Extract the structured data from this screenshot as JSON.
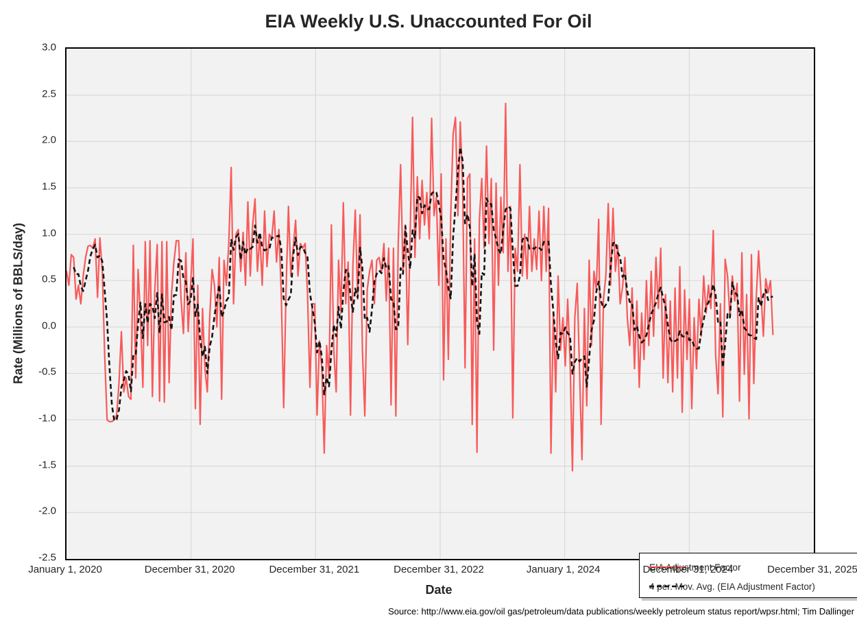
{
  "title": "EIA Weekly U.S. Unaccounted For Oil",
  "y_axis": {
    "label": "Rate (Millions of BBLS/day)",
    "ticks": [
      "3.0",
      "2.5",
      "2.0",
      "1.5",
      "1.0",
      "0.5",
      "0.0",
      "-0.5",
      "-1.0",
      "-1.5",
      "-2.0",
      "-2.5"
    ]
  },
  "x_axis": {
    "label": "Date",
    "ticks": [
      "January 1, 2020",
      "December 31, 2020",
      "December 31, 2021",
      "December 31, 2022",
      "January 1, 2024",
      "December 31, 2024",
      "December 31, 2025"
    ]
  },
  "legend": {
    "items": [
      {
        "label": "EIA Adjustment Factor",
        "style": "solid",
        "color": "#f85a5a"
      },
      {
        "label": "4 per. Mov. Avg. (EIA Adjustment Factor)",
        "style": "dashed",
        "color": "#141414"
      }
    ]
  },
  "source_note": "Source: http://www.eia.gov/oil gas/petroleum/data publications/weekly petroleum status report/wpsr.html; Tim Dallinger",
  "colors": {
    "plot_background": "#f2f2f2",
    "gridline": "#d9d9d9",
    "plot_border": "#000000",
    "adjustment_factor_line": "#f85a5a",
    "moving_average_line": "#141414"
  },
  "chart_data": {
    "type": "line",
    "title": "EIA Weekly U.S. Unaccounted For Oil",
    "xlabel": "Date",
    "ylabel": "Rate (Millions of BBLS/day)",
    "ylim": [
      -2.5,
      3.0
    ],
    "x_axis_span": [
      "January 1, 2020",
      "December 31, 2025"
    ],
    "x_unit": "weekly observations (one value per week)",
    "first_observation": "early January 2020",
    "last_observation": "approximately September 2025",
    "grid": true,
    "legend_position": "inside lower right",
    "series": [
      {
        "name": "EIA Adjustment Factor",
        "units": "Millions of BBLS/day",
        "values": [
          0.6,
          0.45,
          0.78,
          0.75,
          0.3,
          0.45,
          0.25,
          0.55,
          0.75,
          0.87,
          0.88,
          0.85,
          0.95,
          0.32,
          0.96,
          0.6,
          -0.3,
          -1.0,
          -1.02,
          -1.02,
          -1.0,
          -0.95,
          -0.6,
          -0.05,
          -0.7,
          -0.55,
          -0.75,
          -0.78,
          0.88,
          -0.55,
          0.62,
          0.1,
          -0.65,
          0.92,
          -0.2,
          0.93,
          -0.75,
          0.4,
          0.89,
          -0.8,
          0.92,
          -0.81,
          0.92,
          -0.6,
          0.35,
          0.7,
          0.93,
          0.93,
          0.3,
          -0.07,
          0.8,
          -0.05,
          0.45,
          0.95,
          -0.88,
          0.45,
          -1.05,
          0.2,
          -0.45,
          -0.7,
          0.1,
          0.62,
          0.45,
          0.0,
          0.75,
          -0.78,
          0.72,
          0.45,
          0.9,
          1.72,
          0.25,
          1.0,
          1.05,
          0.6,
          1.02,
          0.45,
          1.35,
          0.55,
          1.1,
          1.38,
          0.6,
          1.0,
          0.45,
          1.25,
          0.65,
          1.0,
          0.95,
          1.25,
          0.7,
          1.05,
          0.35,
          -0.87,
          0.4,
          1.3,
          0.55,
          0.85,
          1.15,
          0.55,
          0.9,
          0.85,
          0.9,
          0.35,
          -0.65,
          0.25,
          0.25,
          -0.95,
          -0.15,
          -0.45,
          -1.36,
          -0.2,
          -0.55,
          1.1,
          -0.25,
          -0.7,
          0.72,
          0.15,
          1.34,
          0.25,
          0.7,
          -0.95,
          0.65,
          1.26,
          0.3,
          1.21,
          -0.25,
          -0.96,
          0.4,
          0.6,
          0.72,
          0.25,
          0.72,
          0.75,
          0.6,
          0.9,
          0.28,
          0.85,
          -0.84,
          0.85,
          -0.96,
          0.9,
          1.75,
          0.6,
          1.1,
          -0.19,
          1.0,
          2.26,
          0.75,
          1.62,
          0.95,
          1.58,
          1.1,
          1.45,
          0.95,
          2.25,
          1.2,
          1.4,
          0.45,
          1.65,
          -0.57,
          0.95,
          -0.35,
          1.2,
          2.08,
          2.26,
          1.2,
          2.21,
          1.5,
          -0.44,
          1.6,
          1.65,
          -1.05,
          0.95,
          -1.35,
          1.15,
          1.6,
          0.85,
          1.95,
          0.9,
          1.6,
          -0.25,
          1.55,
          0.45,
          1.4,
          0.8,
          2.41,
          0.6,
          1.3,
          -0.98,
          0.85,
          0.6,
          1.75,
          0.55,
          1.0,
          0.52,
          1.3,
          0.6,
          0.95,
          0.62,
          1.25,
          0.5,
          1.3,
          0.6,
          1.28,
          -1.36,
          0.15,
          -0.7,
          0.55,
          -0.25,
          0.1,
          -0.42,
          0.3,
          -0.35,
          -1.55,
          0.1,
          0.47,
          -0.5,
          -1.43,
          0.2,
          -0.85,
          0.72,
          -0.2,
          0.6,
          0.4,
          1.16,
          -1.05,
          0.3,
          0.55,
          1.33,
          0.45,
          1.28,
          0.6,
          0.88,
          0.25,
          0.43,
          0.75,
          0.1,
          -0.2,
          0.42,
          -0.45,
          0.28,
          -0.65,
          0.15,
          -0.35,
          0.5,
          -0.2,
          0.6,
          -0.1,
          0.75,
          0.2,
          0.85,
          -0.55,
          0.35,
          -0.6,
          0.28,
          -0.7,
          0.42,
          -0.55,
          0.65,
          -0.92,
          0.4,
          -0.35,
          0.3,
          -0.88,
          0.1,
          -0.45,
          0.3,
          -0.1,
          0.55,
          0.15,
          0.45,
          0.2,
          1.04,
          -0.3,
          -0.72,
          0.25,
          -0.97,
          0.73,
          0.55,
          0.1,
          0.55,
          0.28,
          0.47,
          -0.8,
          0.8,
          -0.51,
          0.35,
          -0.99,
          0.78,
          -0.61,
          0.3,
          0.82,
          0.37,
          -0.1,
          0.52,
          0.37,
          0.5,
          -0.08
        ]
      },
      {
        "name": "4 per. Mov. Avg. (EIA Adjustment Factor)",
        "derived": "4-period trailing moving average of the EIA Adjustment Factor series; computed from series 0 values at render time"
      }
    ]
  }
}
